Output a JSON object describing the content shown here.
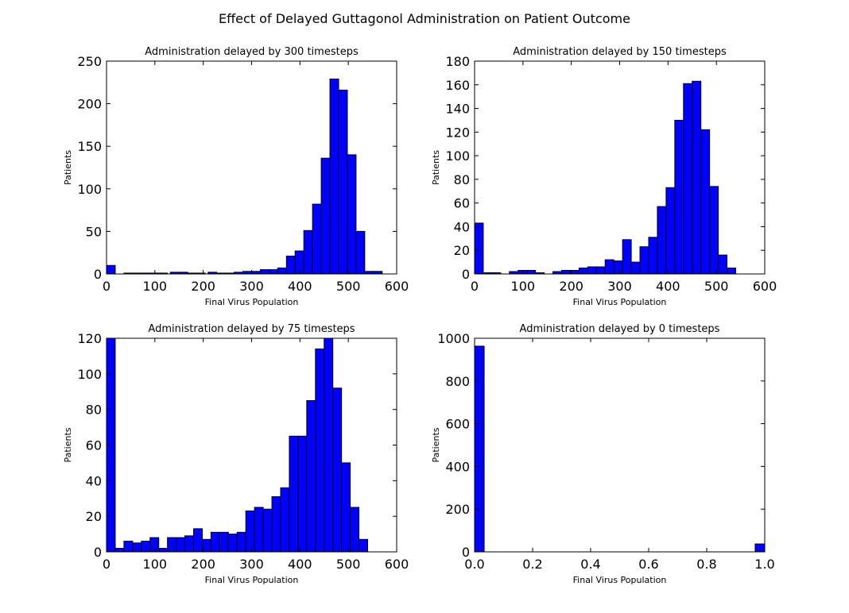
{
  "figure": {
    "suptitle": "Effect of Delayed Guttagonol Administration on Patient Outcome"
  },
  "chart_data": [
    {
      "type": "bar",
      "title": "Administration delayed by 300 timesteps",
      "xlabel": "Final Virus Population",
      "ylabel": "Patients",
      "xlim": [
        0,
        600
      ],
      "ylim": [
        0,
        250
      ],
      "xticks": [
        "0",
        "100",
        "200",
        "300",
        "400",
        "500",
        "600"
      ],
      "yticks": [
        "0",
        "50",
        "100",
        "150",
        "200",
        "250"
      ],
      "bins": [
        [
          0,
          18,
          10
        ],
        [
          36,
          54,
          1
        ],
        [
          54,
          72,
          1
        ],
        [
          72,
          90,
          1
        ],
        [
          90,
          108,
          1
        ],
        [
          108,
          126,
          1
        ],
        [
          132,
          150,
          2
        ],
        [
          150,
          168,
          2
        ],
        [
          168,
          186,
          1
        ],
        [
          186,
          204,
          1
        ],
        [
          210,
          228,
          2
        ],
        [
          228,
          246,
          1
        ],
        [
          246,
          264,
          1
        ],
        [
          264,
          282,
          2
        ],
        [
          282,
          300,
          3
        ],
        [
          300,
          318,
          3
        ],
        [
          318,
          336,
          5
        ],
        [
          336,
          354,
          5
        ],
        [
          354,
          372,
          7
        ],
        [
          372,
          390,
          21
        ],
        [
          390,
          408,
          27
        ],
        [
          408,
          426,
          51
        ],
        [
          426,
          444,
          82
        ],
        [
          444,
          462,
          136
        ],
        [
          462,
          480,
          229
        ],
        [
          480,
          498,
          216
        ],
        [
          498,
          516,
          140
        ],
        [
          516,
          534,
          50
        ],
        [
          534,
          552,
          3
        ],
        [
          552,
          570,
          3
        ]
      ]
    },
    {
      "type": "bar",
      "title": "Administration delayed by 150 timesteps",
      "xlabel": "Final Virus Population",
      "ylabel": "Patients",
      "xlim": [
        0,
        600
      ],
      "ylim": [
        0,
        180
      ],
      "xticks": [
        "0",
        "100",
        "200",
        "300",
        "400",
        "500",
        "600"
      ],
      "yticks": [
        "0",
        "20",
        "40",
        "60",
        "80",
        "100",
        "120",
        "140",
        "160",
        "180"
      ],
      "bins": [
        [
          0,
          18,
          43
        ],
        [
          18,
          36,
          1
        ],
        [
          36,
          54,
          1
        ],
        [
          72,
          90,
          2
        ],
        [
          90,
          108,
          3
        ],
        [
          108,
          126,
          3
        ],
        [
          126,
          144,
          1
        ],
        [
          162,
          180,
          2
        ],
        [
          180,
          198,
          3
        ],
        [
          198,
          216,
          3
        ],
        [
          216,
          234,
          5
        ],
        [
          234,
          252,
          6
        ],
        [
          252,
          270,
          6
        ],
        [
          270,
          288,
          12
        ],
        [
          288,
          306,
          11
        ],
        [
          306,
          324,
          29
        ],
        [
          324,
          342,
          10
        ],
        [
          342,
          360,
          23
        ],
        [
          360,
          378,
          31
        ],
        [
          378,
          396,
          57
        ],
        [
          396,
          414,
          73
        ],
        [
          414,
          432,
          130
        ],
        [
          432,
          450,
          161
        ],
        [
          450,
          468,
          163
        ],
        [
          468,
          486,
          122
        ],
        [
          486,
          504,
          74
        ],
        [
          504,
          522,
          16
        ],
        [
          522,
          540,
          5
        ]
      ]
    },
    {
      "type": "bar",
      "title": "Administration delayed by 75 timesteps",
      "xlabel": "Final Virus Population",
      "ylabel": "Patients",
      "xlim": [
        0,
        600
      ],
      "ylim": [
        0,
        120
      ],
      "xticks": [
        "0",
        "100",
        "200",
        "300",
        "400",
        "500",
        "600"
      ],
      "yticks": [
        "0",
        "20",
        "40",
        "60",
        "80",
        "100",
        "120"
      ],
      "bins": [
        [
          0,
          18,
          120
        ],
        [
          18,
          36,
          2
        ],
        [
          36,
          54,
          6
        ],
        [
          54,
          72,
          5
        ],
        [
          72,
          90,
          6
        ],
        [
          90,
          108,
          8
        ],
        [
          108,
          126,
          2
        ],
        [
          126,
          144,
          8
        ],
        [
          144,
          162,
          8
        ],
        [
          162,
          180,
          9
        ],
        [
          180,
          198,
          13
        ],
        [
          198,
          216,
          7
        ],
        [
          216,
          234,
          11
        ],
        [
          234,
          252,
          11
        ],
        [
          252,
          270,
          10
        ],
        [
          270,
          288,
          11
        ],
        [
          288,
          306,
          23
        ],
        [
          306,
          324,
          25
        ],
        [
          324,
          342,
          24
        ],
        [
          342,
          360,
          31
        ],
        [
          360,
          378,
          36
        ],
        [
          378,
          396,
          65
        ],
        [
          396,
          414,
          65
        ],
        [
          414,
          432,
          85
        ],
        [
          432,
          450,
          114
        ],
        [
          450,
          468,
          120
        ],
        [
          468,
          486,
          92
        ],
        [
          486,
          504,
          50
        ],
        [
          504,
          522,
          25
        ],
        [
          522,
          540,
          7
        ]
      ]
    },
    {
      "type": "bar",
      "title": "Administration delayed by 0 timesteps",
      "xlabel": "Final Virus Population",
      "ylabel": "Patients",
      "xlim": [
        0,
        1
      ],
      "ylim": [
        0,
        1000
      ],
      "xticks": [
        "0.0",
        "0.2",
        "0.4",
        "0.6",
        "0.8",
        "1.0"
      ],
      "yticks": [
        "0",
        "200",
        "400",
        "600",
        "800",
        "1000"
      ],
      "bins": [
        [
          0,
          0.033,
          963
        ],
        [
          0.967,
          1.0,
          37
        ]
      ]
    }
  ]
}
